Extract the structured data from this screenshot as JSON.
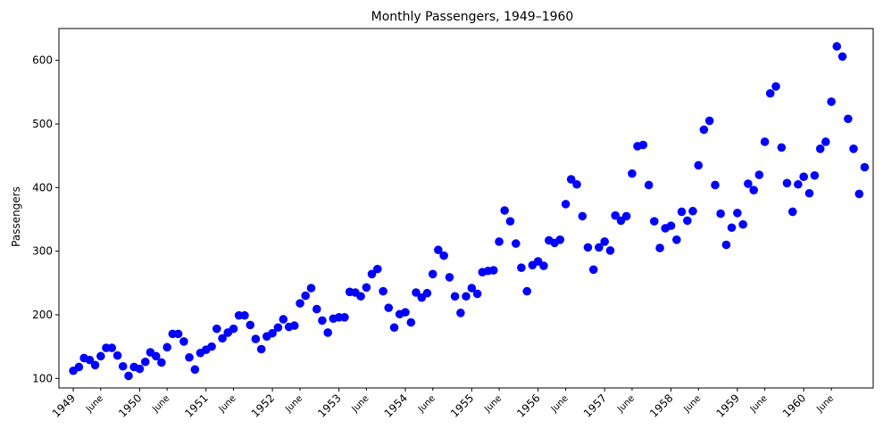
{
  "chart_data": {
    "type": "scatter",
    "title": "Monthly Passengers, 1949–1960",
    "xlabel": "",
    "ylabel": "Passengers",
    "ylim": [
      85,
      650
    ],
    "yticks": [
      100,
      200,
      300,
      400,
      500,
      600
    ],
    "xlim": [
      "1948-10-14",
      "1961-01-17"
    ],
    "xtick_labels": [
      {
        "date": "1949-01-01",
        "label": "1949",
        "major": true
      },
      {
        "date": "1949-06-01",
        "label": "June",
        "major": false
      },
      {
        "date": "1950-01-01",
        "label": "1950",
        "major": true
      },
      {
        "date": "1950-06-01",
        "label": "June",
        "major": false
      },
      {
        "date": "1951-01-01",
        "label": "1951",
        "major": true
      },
      {
        "date": "1951-06-01",
        "label": "June",
        "major": false
      },
      {
        "date": "1952-01-01",
        "label": "1952",
        "major": true
      },
      {
        "date": "1952-06-01",
        "label": "June",
        "major": false
      },
      {
        "date": "1953-01-01",
        "label": "1953",
        "major": true
      },
      {
        "date": "1953-06-01",
        "label": "June",
        "major": false
      },
      {
        "date": "1954-01-01",
        "label": "1954",
        "major": true
      },
      {
        "date": "1954-06-01",
        "label": "June",
        "major": false
      },
      {
        "date": "1955-01-01",
        "label": "1955",
        "major": true
      },
      {
        "date": "1955-06-01",
        "label": "June",
        "major": false
      },
      {
        "date": "1956-01-01",
        "label": "1956",
        "major": true
      },
      {
        "date": "1956-06-01",
        "label": "June",
        "major": false
      },
      {
        "date": "1957-01-01",
        "label": "1957",
        "major": true
      },
      {
        "date": "1957-06-01",
        "label": "June",
        "major": false
      },
      {
        "date": "1958-01-01",
        "label": "1958",
        "major": true
      },
      {
        "date": "1958-06-01",
        "label": "June",
        "major": false
      },
      {
        "date": "1959-01-01",
        "label": "1959",
        "major": true
      },
      {
        "date": "1959-06-01",
        "label": "June",
        "major": false
      },
      {
        "date": "1960-01-01",
        "label": "1960",
        "major": true
      },
      {
        "date": "1960-06-01",
        "label": "June",
        "major": false
      }
    ],
    "grid": false,
    "marker_color": "#0000ff",
    "series": [
      {
        "start_month": "1949-01",
        "frequency": "monthly",
        "values": [
          112,
          118,
          132,
          129,
          121,
          135,
          148,
          148,
          136,
          119,
          104,
          118,
          115,
          126,
          141,
          135,
          125,
          149,
          170,
          170,
          158,
          133,
          114,
          140,
          145,
          150,
          178,
          163,
          172,
          178,
          199,
          199,
          184,
          162,
          146,
          166,
          171,
          180,
          193,
          181,
          183,
          218,
          230,
          242,
          209,
          191,
          172,
          194,
          196,
          196,
          236,
          235,
          229,
          243,
          264,
          272,
          237,
          211,
          180,
          201,
          204,
          188,
          235,
          227,
          234,
          264,
          302,
          293,
          259,
          229,
          203,
          229,
          242,
          233,
          267,
          269,
          270,
          315,
          364,
          347,
          312,
          274,
          237,
          278,
          284,
          277,
          317,
          313,
          318,
          374,
          413,
          405,
          355,
          306,
          271,
          306,
          315,
          301,
          356,
          348,
          355,
          422,
          465,
          467,
          404,
          347,
          305,
          336,
          340,
          318,
          362,
          348,
          363,
          435,
          491,
          505,
          404,
          359,
          310,
          337,
          360,
          342,
          406,
          396,
          420,
          472,
          548,
          559,
          463,
          407,
          362,
          405,
          417,
          391,
          419,
          461,
          472,
          535,
          622,
          606,
          508,
          461,
          390,
          432
        ]
      }
    ]
  }
}
